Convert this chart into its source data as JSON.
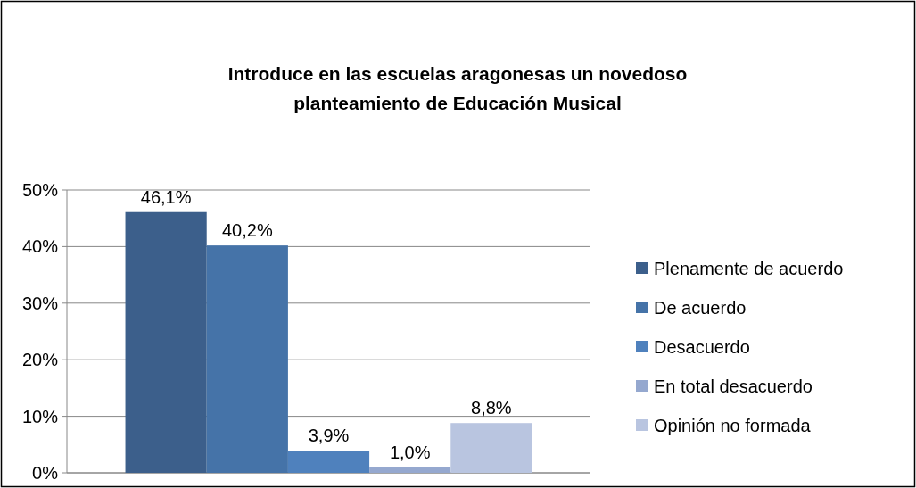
{
  "chart_data": {
    "type": "bar",
    "title": "Introduce en las escuelas aragonesas un novedoso planteamiento de Educación Musical",
    "categories": [
      null
    ],
    "series": [
      {
        "name": "Plenamente de acuerdo",
        "color": "#3c5f8b",
        "values": [
          46.1
        ],
        "value_labels": [
          "46,1%"
        ]
      },
      {
        "name": "De acuerdo",
        "color": "#4573a8",
        "values": [
          40.2
        ],
        "value_labels": [
          "40,2%"
        ]
      },
      {
        "name": "Desacuerdo",
        "color": "#4f81bd",
        "values": [
          3.9
        ],
        "value_labels": [
          "3,9%"
        ]
      },
      {
        "name": "En total desacuerdo",
        "color": "#95a8cf",
        "values": [
          1.0
        ],
        "value_labels": [
          "1,0%"
        ]
      },
      {
        "name": "Opinión no formada",
        "color": "#b9c5e0",
        "values": [
          8.8
        ],
        "value_labels": [
          "8,8%"
        ]
      }
    ],
    "ylim": [
      0,
      50
    ],
    "yticks": [
      {
        "value": 0,
        "label": "0%"
      },
      {
        "value": 10,
        "label": "10%"
      },
      {
        "value": 20,
        "label": "20%"
      },
      {
        "value": 30,
        "label": "30%"
      },
      {
        "value": 40,
        "label": "40%"
      },
      {
        "value": 50,
        "label": "50%"
      }
    ],
    "grid": "y",
    "legend": "right"
  }
}
